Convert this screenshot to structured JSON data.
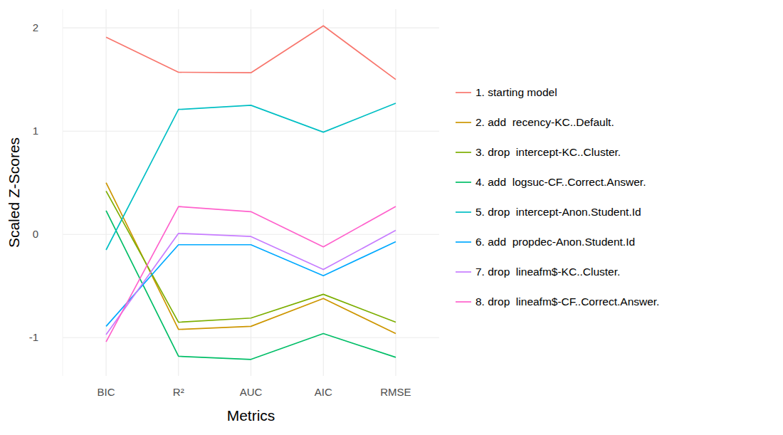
{
  "chart_data": {
    "type": "line",
    "x_label": "Metrics",
    "y_label": "Scaled Z-Scores",
    "categories": [
      "BIC",
      "R²",
      "AUC",
      "AIC",
      "RMSE"
    ],
    "ylim": [
      -1.37,
      2.18
    ],
    "yticks": [
      -1,
      0,
      1,
      2
    ],
    "grid": true,
    "legend": "right",
    "series": [
      {
        "name": "1. starting model",
        "color": "#F8766D",
        "values": [
          1.91,
          1.57,
          1.565,
          2.02,
          1.5
        ]
      },
      {
        "name": "2. add  recency-KC..Default.",
        "color": "#CD9600",
        "values": [
          0.5,
          -0.92,
          -0.89,
          -0.62,
          -0.96
        ]
      },
      {
        "name": "3. drop  intercept-KC..Cluster.",
        "color": "#7CAE00",
        "values": [
          0.42,
          -0.85,
          -0.81,
          -0.58,
          -0.85
        ]
      },
      {
        "name": "4. add  logsuc-CF..Correct.Answer.",
        "color": "#00BE67",
        "values": [
          0.23,
          -1.18,
          -1.21,
          -0.96,
          -1.19
        ]
      },
      {
        "name": "5. drop  intercept-Anon.Student.Id",
        "color": "#00BFC4",
        "values": [
          -0.15,
          1.21,
          1.25,
          0.99,
          1.27
        ]
      },
      {
        "name": "6. add  propdec-Anon.Student.Id",
        "color": "#00A9FF",
        "values": [
          -0.89,
          -0.1,
          -0.1,
          -0.4,
          -0.07
        ]
      },
      {
        "name": "7. drop  lineafm$-KC..Cluster.",
        "color": "#C77CFF",
        "values": [
          -0.97,
          0.01,
          -0.02,
          -0.34,
          0.04
        ]
      },
      {
        "name": "8. drop  lineafm$-CF..Correct.Answer.",
        "color": "#FF61CC",
        "values": [
          -1.04,
          0.27,
          0.22,
          -0.12,
          0.27
        ]
      }
    ]
  }
}
